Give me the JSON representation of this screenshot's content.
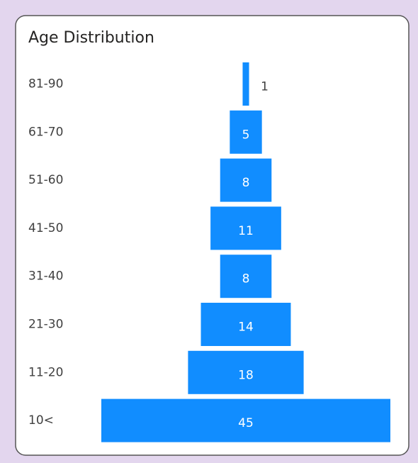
{
  "chart_data": {
    "type": "funnel",
    "title": "Age Distribution",
    "categories": [
      "81-90",
      "61-70",
      "51-60",
      "41-50",
      "31-40",
      "21-30",
      "11-20",
      "10<"
    ],
    "values": [
      1,
      5,
      8,
      11,
      8,
      14,
      18,
      45
    ],
    "color": "#118dff"
  }
}
